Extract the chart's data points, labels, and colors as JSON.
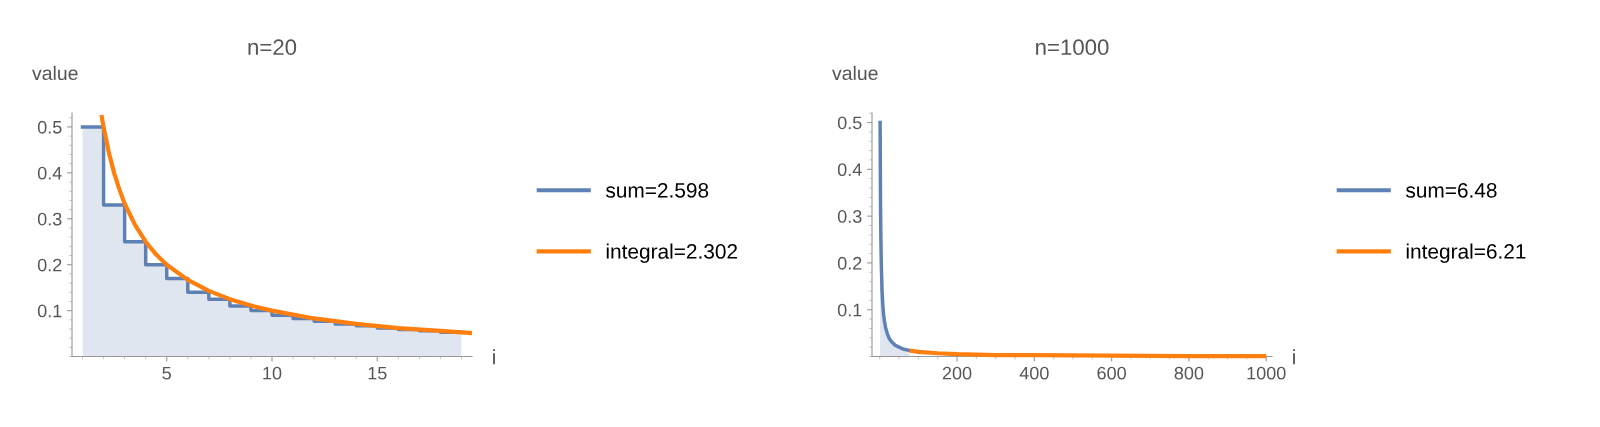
{
  "chart_data": [
    {
      "type": "line",
      "title": "n=20",
      "xlabel": "i",
      "ylabel": "value",
      "xlim": [
        0.5,
        19.5
      ],
      "ylim": [
        0,
        0.53
      ],
      "xticks": [
        5,
        10,
        15
      ],
      "yticks": [
        0.1,
        0.2,
        0.3,
        0.4,
        0.5
      ],
      "legend": "right",
      "grid": false,
      "series": [
        {
          "name": "sum=2.598",
          "type": "area",
          "color": "#5e81b5",
          "x": [
            1,
            2,
            2,
            3,
            3,
            4,
            4,
            5,
            5,
            6,
            6,
            7,
            7,
            8,
            8,
            9,
            9,
            10,
            10,
            11,
            11,
            12,
            12,
            13,
            13,
            14,
            14,
            15,
            15,
            16,
            16,
            17,
            17,
            18,
            18,
            19
          ],
          "values": [
            0.5,
            0.5,
            0.33,
            0.33,
            0.25,
            0.25,
            0.2,
            0.2,
            0.17,
            0.17,
            0.14,
            0.14,
            0.125,
            0.125,
            0.11,
            0.11,
            0.1,
            0.1,
            0.09,
            0.09,
            0.083,
            0.083,
            0.077,
            0.077,
            0.071,
            0.071,
            0.067,
            0.067,
            0.062,
            0.062,
            0.059,
            0.059,
            0.056,
            0.056,
            0.053,
            0.053
          ]
        },
        {
          "name": "integral=2.302",
          "color": "#ff7f0e",
          "x": [
            1.9,
            2,
            2.25,
            2.5,
            2.75,
            3,
            3.5,
            4,
            4.5,
            5,
            6,
            7,
            8,
            9,
            10,
            12,
            14,
            16,
            18,
            19.5
          ],
          "values": [
            0.526,
            0.5,
            0.444,
            0.4,
            0.364,
            0.333,
            0.286,
            0.25,
            0.222,
            0.2,
            0.167,
            0.143,
            0.125,
            0.111,
            0.1,
            0.083,
            0.071,
            0.062,
            0.056,
            0.051
          ]
        }
      ]
    },
    {
      "type": "line",
      "title": "n=1000",
      "xlabel": "i",
      "ylabel": "value",
      "xlim": [
        -20,
        1015
      ],
      "ylim": [
        0,
        0.52
      ],
      "xticks": [
        200,
        400,
        600,
        800,
        1000
      ],
      "yticks": [
        0.1,
        0.2,
        0.3,
        0.4,
        0.5
      ],
      "legend": "right",
      "grid": false,
      "series": [
        {
          "name": "sum=6.48",
          "type": "area",
          "color": "#5e81b5",
          "x": [
            1,
            2,
            3,
            4,
            5,
            6,
            8,
            10,
            12,
            15,
            20,
            25,
            30,
            40,
            50,
            60,
            77
          ],
          "values": [
            0.5,
            0.33,
            0.25,
            0.2,
            0.17,
            0.14,
            0.11,
            0.09,
            0.077,
            0.062,
            0.048,
            0.038,
            0.032,
            0.024,
            0.02,
            0.016,
            0.013
          ]
        },
        {
          "name": "integral=6.21",
          "color": "#ff7f0e",
          "x": [
            77,
            100,
            150,
            200,
            300,
            400,
            600,
            800,
            1000
          ],
          "values": [
            0.013,
            0.01,
            0.007,
            0.005,
            0.003,
            0.003,
            0.002,
            0.001,
            0.001
          ]
        }
      ]
    }
  ]
}
